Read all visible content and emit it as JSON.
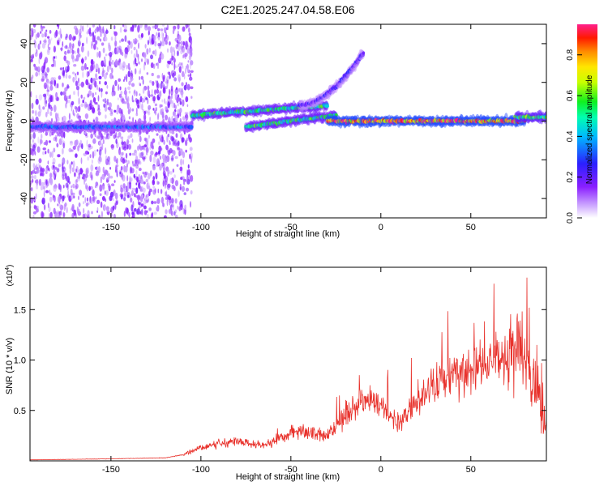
{
  "figure_title": "C2E1.2025.247.04.58.E06",
  "colors": {
    "snr_line": "#e8322c",
    "axis": "#000000",
    "background": "#ffffff"
  },
  "chart_data": [
    {
      "type": "heatmap",
      "name": "spectrogram",
      "title": "C2E1.2025.247.04.58.E06",
      "xlabel": "Height of straight line (km)",
      "ylabel": "Frequency (Hz)",
      "xlim": [
        -195,
        92
      ],
      "ylim": [
        -50,
        50
      ],
      "xticks": [
        -150,
        -100,
        -50,
        0,
        50
      ],
      "xtick_labels": [
        "-150",
        "-100",
        "-50",
        "0",
        "50"
      ],
      "yticks": [
        -40,
        -20,
        0,
        20,
        40
      ],
      "ytick_labels": [
        "-40",
        "-20",
        "0",
        "20",
        "40"
      ],
      "colorbar": {
        "label": "Normalized spectral amplitude",
        "range": [
          0,
          0.95
        ],
        "ticks": [
          0.0,
          0.2,
          0.4,
          0.6,
          0.8
        ],
        "tick_labels": [
          "0.0",
          "0.2",
          "0.4",
          "0.6",
          "0.8"
        ],
        "colormap": "rainbow (white-violet-blue-cyan-green-yellow-orange-red-magenta)"
      },
      "features": [
        {
          "description": "broadband noise speckle",
          "x_range": [
            -195,
            -105
          ],
          "freq_range": [
            -50,
            50
          ],
          "amplitude": 0.1
        },
        {
          "description": "centred band",
          "x_range": [
            -195,
            -105
          ],
          "freq_center": -3,
          "amplitude": 0.35
        },
        {
          "description": "upper drifting band",
          "x_range": [
            -105,
            -30
          ],
          "freq_start": 3,
          "freq_end": 8,
          "amplitude": 0.55
        },
        {
          "description": "lower drifting band",
          "x_range": [
            -75,
            -25
          ],
          "freq_start": -3,
          "freq_end": 3,
          "amplitude": 0.55
        },
        {
          "description": "diverging trace",
          "x_range": [
            -45,
            -10
          ],
          "freq_start": 8,
          "freq_end": 35,
          "amplitude": 0.25
        },
        {
          "description": "strong carrier line",
          "x_range": [
            -30,
            80
          ],
          "freq_center": 0,
          "amplitude": 0.9
        },
        {
          "description": "edge burst",
          "x_range": [
            75,
            92
          ],
          "freq_center": 2,
          "amplitude": 0.6
        }
      ]
    },
    {
      "type": "line",
      "name": "snr",
      "title": "",
      "xlabel": "Height of straight line (km)",
      "ylabel": "SNR (10 * v/v)",
      "y_multiplier_label": "(x10",
      "y_multiplier_exp": "4",
      "y_multiplier_close": ")",
      "xlim": [
        -195,
        92
      ],
      "ylim": [
        0,
        1.92
      ],
      "xticks": [
        -150,
        -100,
        -50,
        0,
        50
      ],
      "xtick_labels": [
        "-150",
        "-100",
        "-50",
        "0",
        "50"
      ],
      "yticks": [
        0.5,
        1.0,
        1.5
      ],
      "ytick_labels": [
        "0.5",
        "1.0",
        "1.5"
      ],
      "series": [
        {
          "name": "SNR",
          "color": "#e8322c",
          "x": [
            -195,
            -150,
            -120,
            -110,
            -100,
            -90,
            -80,
            -70,
            -60,
            -50,
            -40,
            -30,
            -20,
            -10,
            0,
            10,
            20,
            30,
            40,
            50,
            60,
            70,
            75,
            80,
            85,
            88,
            92
          ],
          "y": [
            0.01,
            0.02,
            0.03,
            0.06,
            0.13,
            0.17,
            0.2,
            0.16,
            0.18,
            0.28,
            0.3,
            0.25,
            0.44,
            0.62,
            0.55,
            0.38,
            0.6,
            0.75,
            0.85,
            0.9,
            0.95,
            1.02,
            1.1,
            1.0,
            0.8,
            0.55,
            0.3
          ]
        }
      ]
    }
  ]
}
